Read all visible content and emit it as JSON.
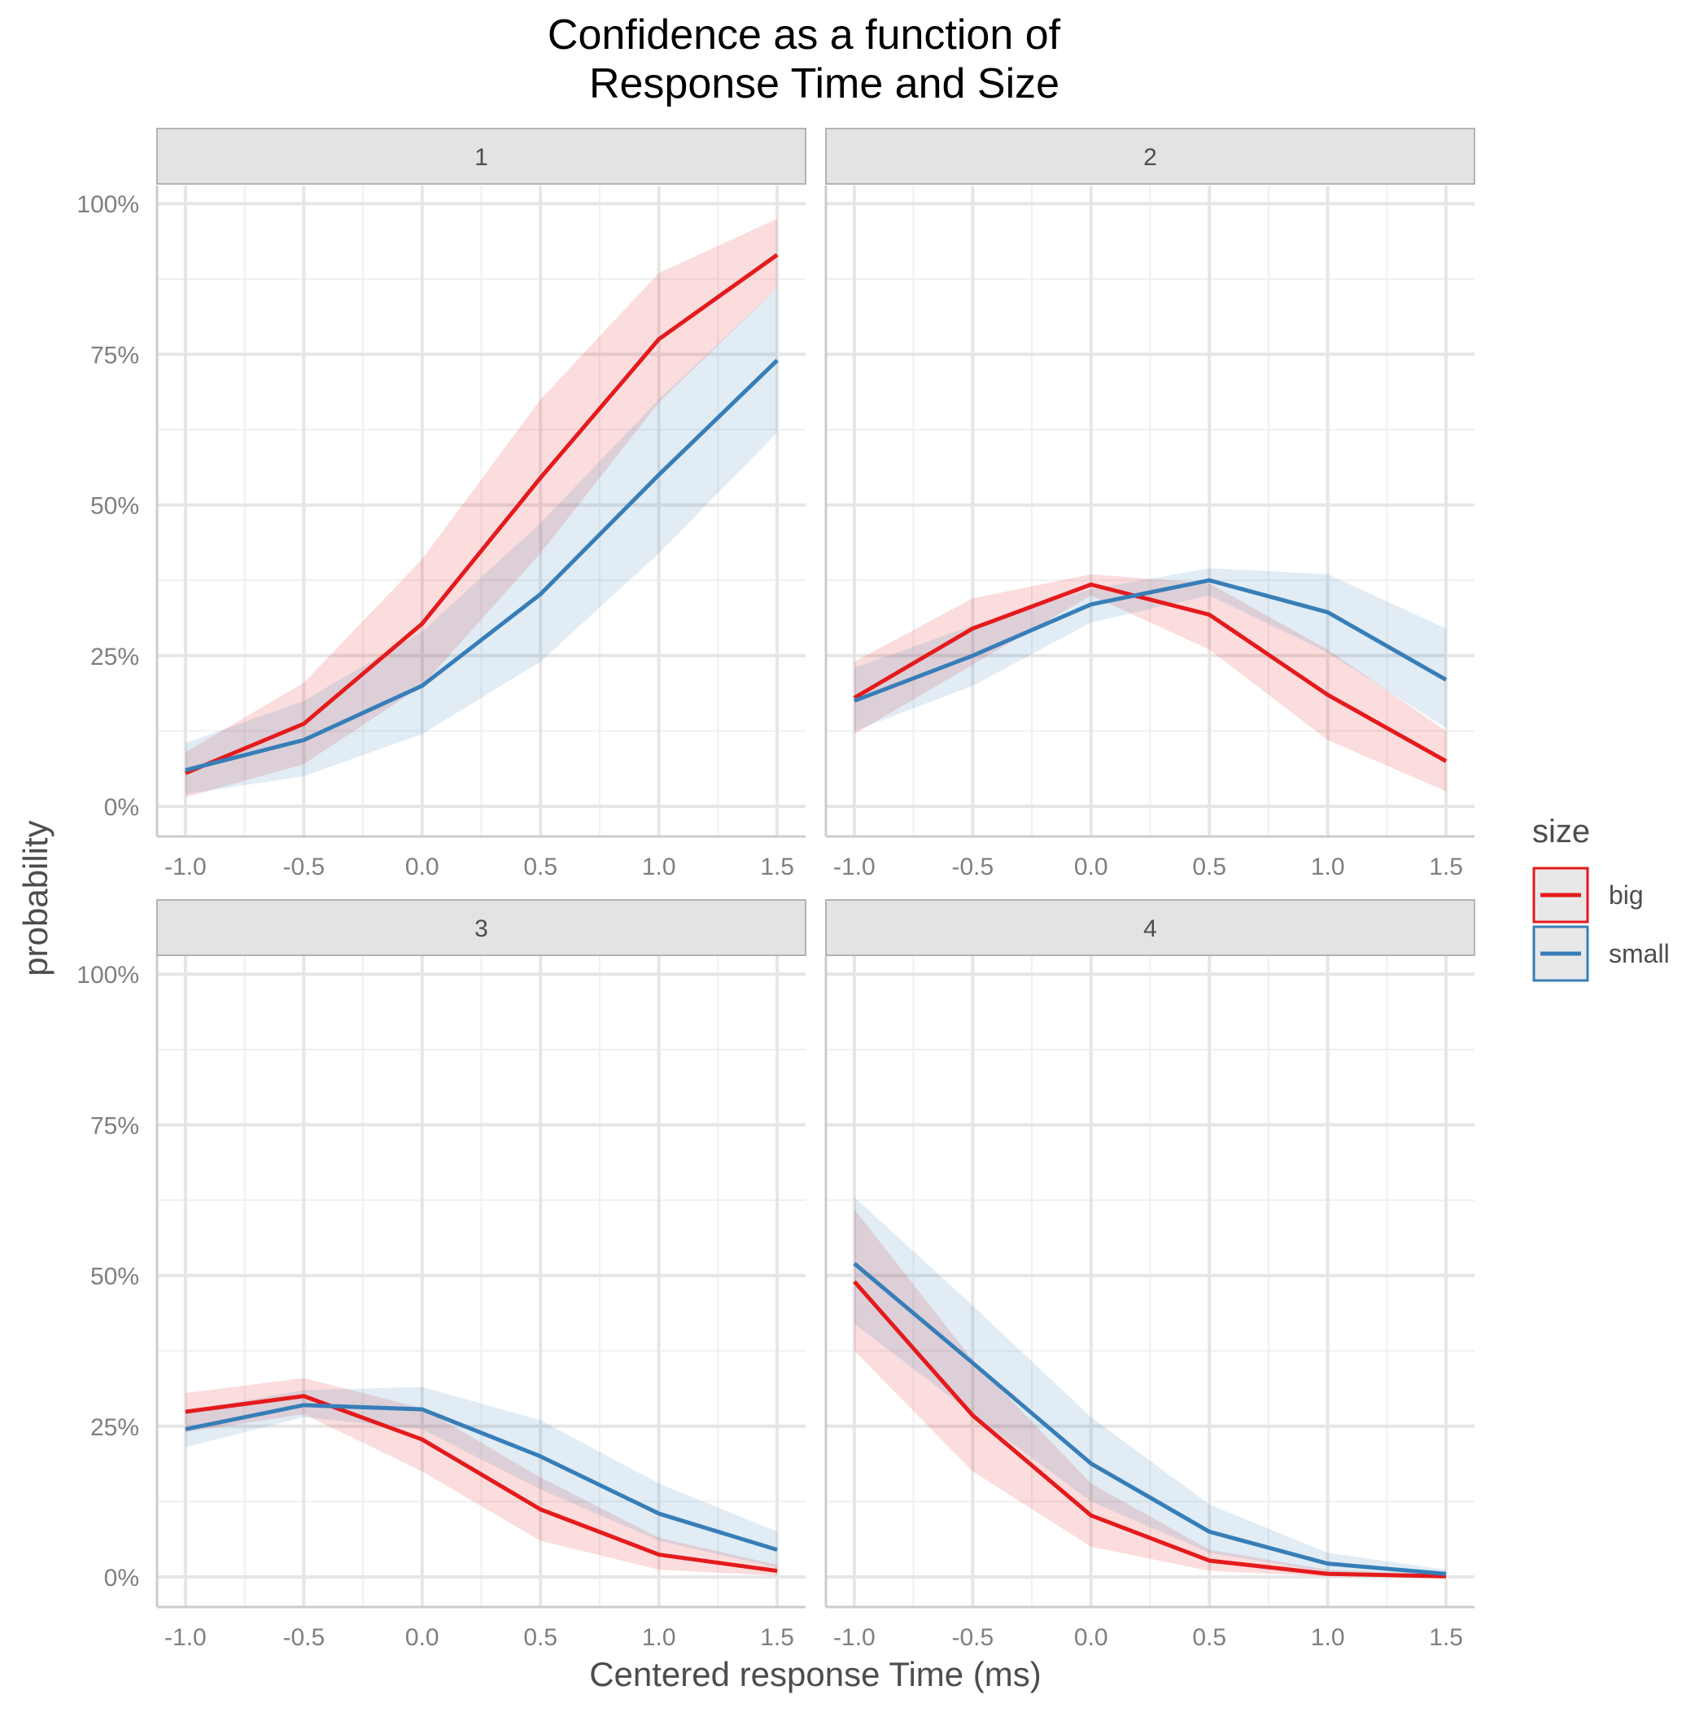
{
  "chart_data": {
    "type": "line",
    "title_line1": "Confidence as a function of",
    "title_line2": "Response Time and Size",
    "xlabel": "Centered response Time (ms)",
    "ylabel": "probability",
    "x": [
      -1.0,
      -0.5,
      0.0,
      0.5,
      1.0,
      1.5
    ],
    "x_tick_labels": [
      "-1.0",
      "-0.5",
      "0.0",
      "0.5",
      "1.0",
      "1.5"
    ],
    "y_tick_values": [
      0,
      0.25,
      0.5,
      0.75,
      1.0
    ],
    "y_tick_labels": [
      "0%",
      "25%",
      "50%",
      "75%",
      "100%"
    ],
    "xlim": [
      -1.12,
      1.62
    ],
    "ylim": [
      -0.05,
      1.03
    ],
    "grid": true,
    "legend": {
      "title": "size",
      "position": "right",
      "entries": [
        {
          "label": "big",
          "color": "#e41a1c"
        },
        {
          "label": "small",
          "color": "#377eb8"
        }
      ]
    },
    "panels": [
      {
        "label": "1",
        "series": [
          {
            "name": "big",
            "color": "#e41a1c",
            "values": [
              0.055,
              0.137,
              0.303,
              0.545,
              0.775,
              0.915
            ],
            "lower": [
              0.015,
              0.07,
              0.2,
              0.42,
              0.67,
              0.86
            ],
            "upper": [
              0.09,
              0.205,
              0.41,
              0.675,
              0.885,
              0.975
            ]
          },
          {
            "name": "small",
            "color": "#377eb8",
            "values": [
              0.06,
              0.11,
              0.2,
              0.352,
              0.55,
              0.74
            ],
            "lower": [
              0.02,
              0.05,
              0.12,
              0.24,
              0.42,
              0.62
            ],
            "upper": [
              0.105,
              0.175,
              0.29,
              0.47,
              0.675,
              0.86
            ]
          }
        ]
      },
      {
        "label": "2",
        "series": [
          {
            "name": "big",
            "color": "#e41a1c",
            "values": [
              0.18,
              0.295,
              0.368,
              0.318,
              0.185,
              0.075
            ],
            "lower": [
              0.12,
              0.235,
              0.35,
              0.26,
              0.11,
              0.025
            ],
            "upper": [
              0.24,
              0.345,
              0.385,
              0.37,
              0.26,
              0.125
            ]
          },
          {
            "name": "small",
            "color": "#377eb8",
            "values": [
              0.175,
              0.25,
              0.335,
              0.375,
              0.322,
              0.21
            ],
            "lower": [
              0.125,
              0.2,
              0.305,
              0.35,
              0.255,
              0.13
            ],
            "upper": [
              0.23,
              0.3,
              0.36,
              0.395,
              0.385,
              0.295
            ]
          }
        ]
      },
      {
        "label": "3",
        "series": [
          {
            "name": "big",
            "color": "#e41a1c",
            "values": [
              0.274,
              0.3,
              0.228,
              0.112,
              0.037,
              0.01
            ],
            "lower": [
              0.24,
              0.27,
              0.175,
              0.06,
              0.012,
              0.002
            ],
            "upper": [
              0.305,
              0.33,
              0.28,
              0.165,
              0.065,
              0.02
            ]
          },
          {
            "name": "small",
            "color": "#377eb8",
            "values": [
              0.245,
              0.285,
              0.278,
              0.2,
              0.105,
              0.045
            ],
            "lower": [
              0.215,
              0.265,
              0.245,
              0.145,
              0.06,
              0.015
            ],
            "upper": [
              0.275,
              0.31,
              0.315,
              0.26,
              0.155,
              0.075
            ]
          }
        ]
      },
      {
        "label": "4",
        "series": [
          {
            "name": "big",
            "color": "#e41a1c",
            "values": [
              0.49,
              0.268,
              0.102,
              0.027,
              0.005,
              0.001
            ],
            "lower": [
              0.375,
              0.175,
              0.05,
              0.01,
              0.001,
              0.0
            ],
            "upper": [
              0.61,
              0.36,
              0.155,
              0.045,
              0.012,
              0.004
            ]
          },
          {
            "name": "small",
            "color": "#377eb8",
            "values": [
              0.52,
              0.355,
              0.188,
              0.075,
              0.022,
              0.005
            ],
            "lower": [
              0.42,
              0.27,
              0.125,
              0.04,
              0.008,
              0.001
            ],
            "upper": [
              0.63,
              0.45,
              0.265,
              0.12,
              0.04,
              0.012
            ]
          }
        ]
      }
    ]
  }
}
